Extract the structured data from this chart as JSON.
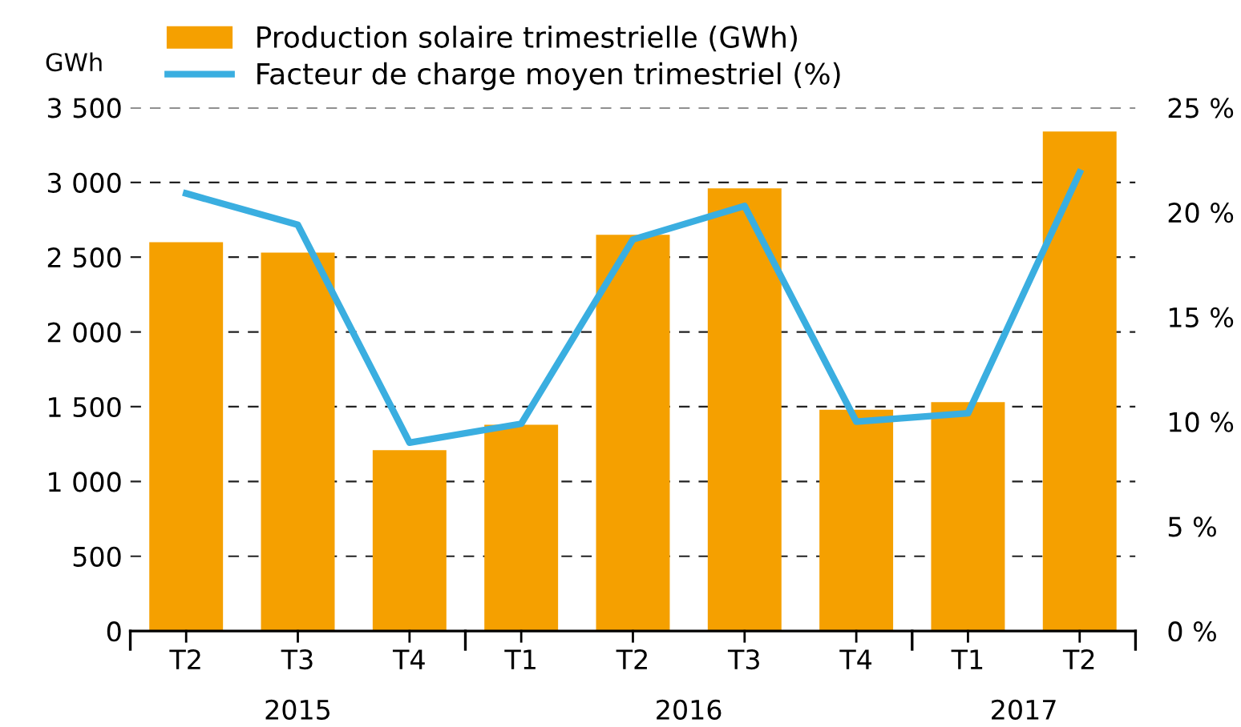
{
  "chart_data": {
    "type": "bar",
    "ylabel": "GWh",
    "categories": [
      "T2",
      "T3",
      "T4",
      "T1",
      "T2",
      "T3",
      "T4",
      "T1",
      "T2"
    ],
    "series": [
      {
        "name": "Production solaire trimestrielle (GWh)",
        "color": "#f5a000",
        "values": [
          2600,
          2530,
          1210,
          1380,
          2650,
          2960,
          1480,
          1530,
          3340
        ]
      },
      {
        "name": "Facteur de charge moyen trimestriel (%)",
        "type": "line",
        "axis": "y2",
        "color": "#3aaee0",
        "values": [
          20.9,
          19.4,
          9.0,
          9.9,
          18.7,
          20.3,
          10.0,
          10.4,
          21.9
        ]
      }
    ],
    "ylim": [
      0,
      3500
    ],
    "yticks": [
      {
        "value": 0,
        "label": "0"
      },
      {
        "value": 500,
        "label": "500"
      },
      {
        "value": 1000,
        "label": "1 000"
      },
      {
        "value": 1500,
        "label": "1 500"
      },
      {
        "value": 2000,
        "label": "2 000"
      },
      {
        "value": 2500,
        "label": "2 500"
      },
      {
        "value": 3000,
        "label": "3 000"
      },
      {
        "value": 3500,
        "label": "3 500"
      }
    ],
    "y2lim": [
      0,
      25
    ],
    "y2ticks": [
      {
        "value": 0,
        "label": "0 %"
      },
      {
        "value": 5,
        "label": "5 %"
      },
      {
        "value": 10,
        "label": "10 %"
      },
      {
        "value": 15,
        "label": "15 %"
      },
      {
        "value": 20,
        "label": "20 %"
      },
      {
        "value": 25,
        "label": "25 %"
      }
    ],
    "annotations": [
      "2015",
      "2016",
      "2017"
    ],
    "grid": "y",
    "legend": "top left",
    "marker": "none",
    "line_style": "solid"
  }
}
